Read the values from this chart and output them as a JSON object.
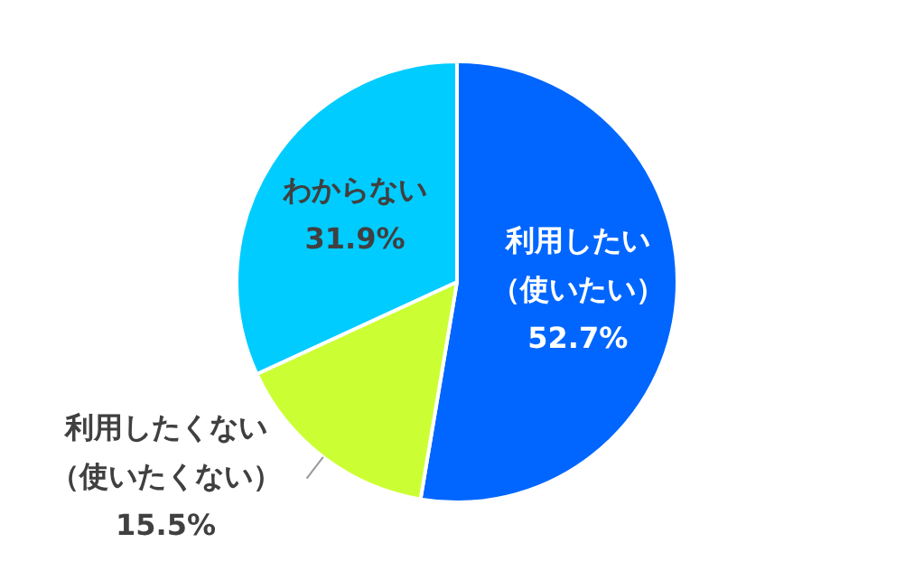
{
  "chart_data": {
    "type": "pie",
    "categories": [
      "利用したい（使いたい）",
      "利用したくない（使いたくない）",
      "わからない"
    ],
    "values": [
      52.7,
      15.5,
      31.9
    ],
    "colors": [
      "#0066ff",
      "#ccff33",
      "#00ccff"
    ],
    "value_labels": [
      "52.7%",
      "15.5%",
      "31.9%"
    ],
    "legend": false
  }
}
